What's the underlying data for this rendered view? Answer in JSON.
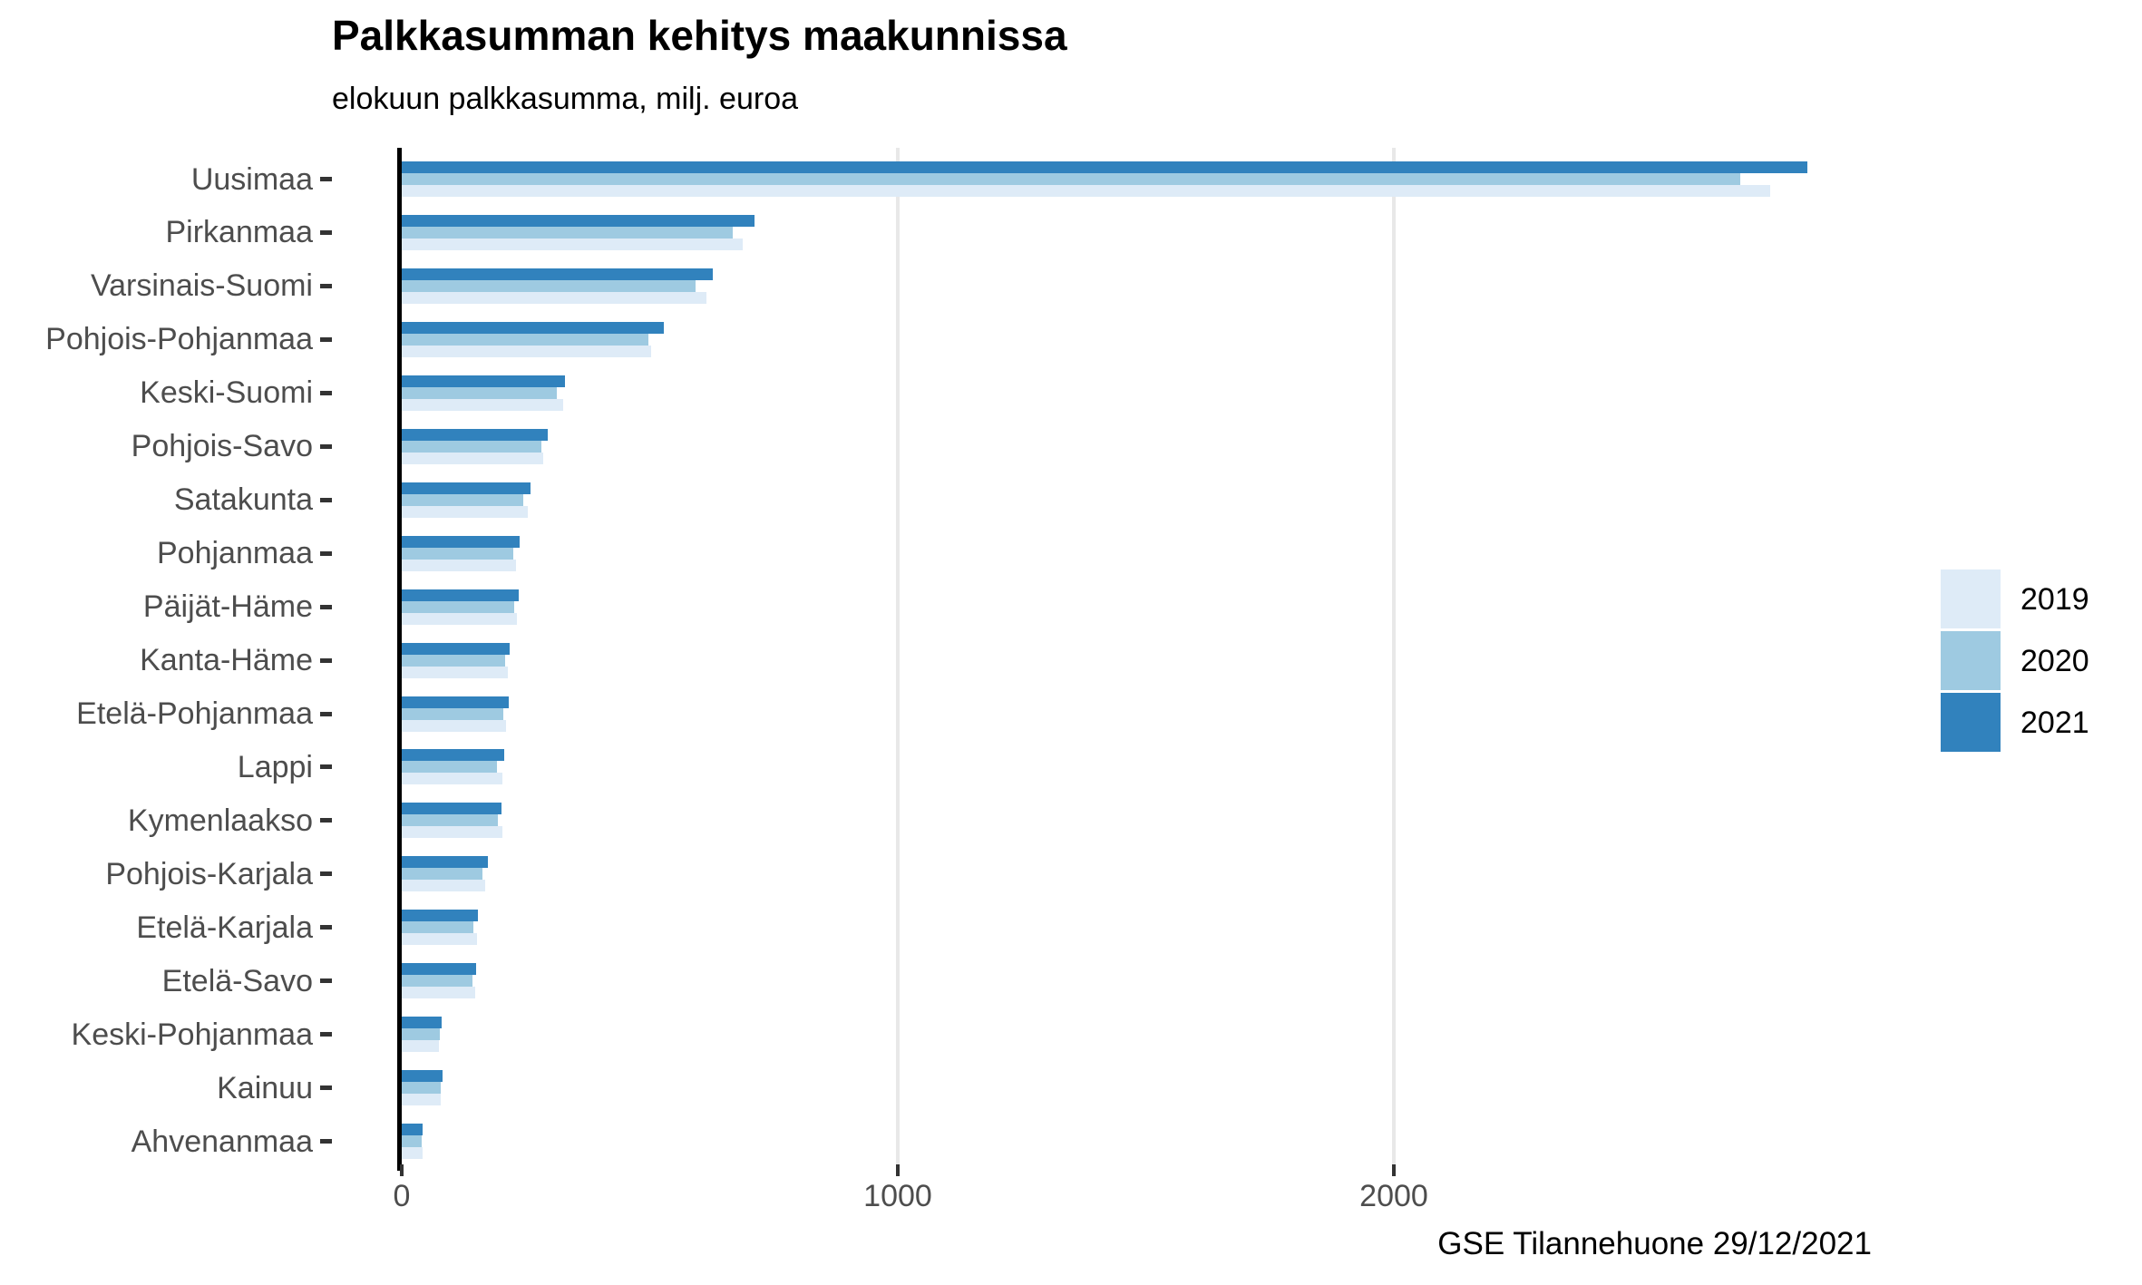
{
  "chart_data": {
    "type": "bar",
    "orientation": "horizontal",
    "title": "Palkkasumman kehitys maakunnissa",
    "subtitle": "elokuun palkkasumma, milj. euroa",
    "caption": "GSE Tilannehuone 29/12/2021",
    "xlabel": "",
    "ylabel": "",
    "xlim": [
      0,
      2980
    ],
    "x_ticks": [
      0,
      1000,
      2000
    ],
    "x_tick_labels": [
      "0",
      "1000",
      "2000"
    ],
    "grid": "major vertical gridlines only",
    "legend_position": "right-center",
    "bar_group_order_top_to_bottom": [
      "2021",
      "2020",
      "2019"
    ],
    "categories": [
      "Uusimaa",
      "Pirkanmaa",
      "Varsinais-Suomi",
      "Pohjois-Pohjanmaa",
      "Keski-Suomi",
      "Pohjois-Savo",
      "Satakunta",
      "Pohjanmaa",
      "Päijät-Häme",
      "Kanta-Häme",
      "Etelä-Pohjanmaa",
      "Lappi",
      "Kymenlaakso",
      "Pohjois-Karjala",
      "Etelä-Karjala",
      "Etelä-Savo",
      "Keski-Pohjanmaa",
      "Kainuu",
      "Ahvenanmaa"
    ],
    "series": [
      {
        "name": "2021",
        "color": "#3182bd",
        "values": [
          2834,
          711,
          627,
          528,
          329,
          294,
          260,
          238,
          236,
          218,
          216,
          207,
          201,
          174,
          154,
          150,
          80,
          82,
          42
        ]
      },
      {
        "name": "2020",
        "color": "#9ecae1",
        "values": [
          2699,
          667,
          592,
          497,
          313,
          282,
          245,
          225,
          227,
          208,
          205,
          192,
          194,
          163,
          144,
          143,
          76,
          78,
          40
        ]
      },
      {
        "name": "2019",
        "color": "#deebf7",
        "values": [
          2759,
          687,
          614,
          503,
          325,
          285,
          254,
          230,
          233,
          214,
          210,
          203,
          203,
          168,
          152,
          148,
          75,
          79,
          42
        ]
      }
    ]
  },
  "legend": {
    "entries": [
      {
        "label": "2019",
        "color": "#deebf7"
      },
      {
        "label": "2020",
        "color": "#9ecae1"
      },
      {
        "label": "2021",
        "color": "#3182bd"
      }
    ]
  },
  "colors": {
    "bar_2019": "#deebf7",
    "bar_2020": "#9ecae1",
    "bar_2021": "#3182bd",
    "gridline": "#e8e8e8",
    "axis_line": "#000000",
    "axis_text": "#4d4d4d",
    "background": "#ffffff"
  }
}
